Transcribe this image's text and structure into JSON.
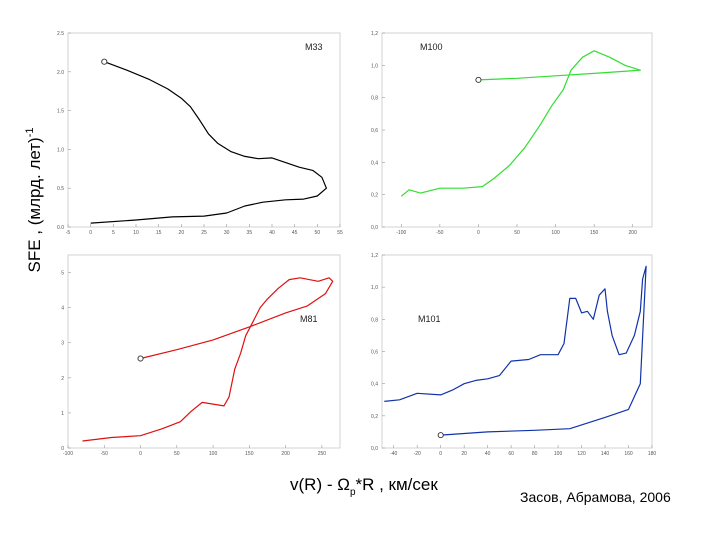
{
  "figure": {
    "ylabel": "SFE , (млрд. лет)",
    "ylabel_sup": "-1",
    "xlabel_prefix": "v(R) - ",
    "xlabel_omega": "Ω",
    "xlabel_sub": "p",
    "xlabel_suffix": "*R , км/сек",
    "citation": "Засов, Абрамова, 2006"
  },
  "chart_data": [
    {
      "type": "line",
      "name": "M33",
      "color": "#000000",
      "xlim": [
        -5,
        55
      ],
      "ylim": [
        0,
        2.5
      ],
      "xticks": [
        -5,
        0,
        5,
        10,
        15,
        20,
        25,
        30,
        35,
        40,
        45,
        50,
        55
      ],
      "yticks": [
        0,
        0.5,
        1.0,
        1.5,
        2.0,
        2.5
      ],
      "ytick_labels": [
        "0.0",
        "0.5",
        "1.0",
        "1.5",
        "2.0",
        "2.5"
      ],
      "start_marker": [
        3,
        2.13
      ],
      "points": [
        [
          3,
          2.13
        ],
        [
          8,
          2.02
        ],
        [
          13,
          1.9
        ],
        [
          17,
          1.78
        ],
        [
          20,
          1.66
        ],
        [
          22,
          1.55
        ],
        [
          24,
          1.38
        ],
        [
          26,
          1.2
        ],
        [
          28,
          1.08
        ],
        [
          31,
          0.97
        ],
        [
          34,
          0.91
        ],
        [
          37,
          0.88
        ],
        [
          40,
          0.89
        ],
        [
          43,
          0.83
        ],
        [
          46,
          0.77
        ],
        [
          49,
          0.73
        ],
        [
          51,
          0.64
        ],
        [
          52,
          0.5
        ],
        [
          50,
          0.4
        ],
        [
          47,
          0.36
        ],
        [
          43,
          0.35
        ],
        [
          38,
          0.32
        ],
        [
          34,
          0.27
        ],
        [
          30,
          0.18
        ],
        [
          25,
          0.14
        ],
        [
          18,
          0.13
        ],
        [
          10,
          0.09
        ],
        [
          0,
          0.05
        ]
      ]
    },
    {
      "type": "line",
      "name": "M100",
      "color": "#33dd33",
      "xlim": [
        -125,
        225
      ],
      "ylim": [
        0,
        1.2
      ],
      "xticks": [
        -100,
        -50,
        0,
        50,
        100,
        150,
        200
      ],
      "yticks": [
        0,
        0.2,
        0.4,
        0.6,
        0.8,
        1.0,
        1.2
      ],
      "ytick_labels": [
        "0,0",
        "0,2",
        "0,4",
        "0,6",
        "0,8",
        "1,0",
        "1,2"
      ],
      "start_marker": [
        0,
        0.91
      ],
      "points": [
        [
          0,
          0.91
        ],
        [
          50,
          0.92
        ],
        [
          100,
          0.935
        ],
        [
          150,
          0.95
        ],
        [
          210,
          0.97
        ],
        [
          190,
          1.0
        ],
        [
          170,
          1.05
        ],
        [
          150,
          1.09
        ],
        [
          135,
          1.05
        ],
        [
          120,
          0.97
        ],
        [
          110,
          0.85
        ],
        [
          95,
          0.75
        ],
        [
          80,
          0.63
        ],
        [
          60,
          0.49
        ],
        [
          40,
          0.38
        ],
        [
          20,
          0.3
        ],
        [
          5,
          0.25
        ],
        [
          -20,
          0.24
        ],
        [
          -50,
          0.24
        ],
        [
          -75,
          0.21
        ],
        [
          -90,
          0.23
        ],
        [
          -100,
          0.19
        ]
      ]
    },
    {
      "type": "line",
      "name": "M81",
      "color": "#dd1111",
      "xlim": [
        -100,
        275
      ],
      "ylim": [
        0,
        5.5
      ],
      "xticks": [
        -100,
        -50,
        0,
        50,
        100,
        150,
        200,
        250
      ],
      "yticks": [
        0,
        1,
        2,
        3,
        4,
        5
      ],
      "ytick_labels": [
        "0",
        "1",
        "2",
        "3",
        "4",
        "5"
      ],
      "start_marker": [
        0,
        2.55
      ],
      "points": [
        [
          0,
          2.55
        ],
        [
          50,
          2.8
        ],
        [
          100,
          3.08
        ],
        [
          150,
          3.45
        ],
        [
          200,
          3.85
        ],
        [
          230,
          4.05
        ],
        [
          255,
          4.4
        ],
        [
          265,
          4.75
        ],
        [
          260,
          4.85
        ],
        [
          245,
          4.75
        ],
        [
          220,
          4.85
        ],
        [
          205,
          4.8
        ],
        [
          190,
          4.55
        ],
        [
          175,
          4.25
        ],
        [
          165,
          4.0
        ],
        [
          155,
          3.6
        ],
        [
          145,
          3.2
        ],
        [
          138,
          2.7
        ],
        [
          130,
          2.25
        ],
        [
          122,
          1.45
        ],
        [
          115,
          1.2
        ],
        [
          100,
          1.25
        ],
        [
          85,
          1.3
        ],
        [
          70,
          1.05
        ],
        [
          55,
          0.75
        ],
        [
          30,
          0.55
        ],
        [
          0,
          0.35
        ],
        [
          -40,
          0.3
        ],
        [
          -80,
          0.2
        ]
      ]
    },
    {
      "type": "line",
      "name": "M101",
      "color": "#1133aa",
      "xlim": [
        -50,
        180
      ],
      "ylim": [
        0,
        1.2
      ],
      "xticks": [
        -40,
        -20,
        0,
        20,
        40,
        60,
        80,
        100,
        120,
        140,
        160,
        180
      ],
      "yticks": [
        0,
        0.2,
        0.4,
        0.6,
        0.8,
        1.0,
        1.2
      ],
      "ytick_labels": [
        "0,0",
        "0,2",
        "0,4",
        "0,6",
        "0,8",
        "1,0",
        "1,2"
      ],
      "start_marker": [
        0,
        0.08
      ],
      "points": [
        [
          0,
          0.08
        ],
        [
          40,
          0.1
        ],
        [
          80,
          0.11
        ],
        [
          110,
          0.12
        ],
        [
          140,
          0.19
        ],
        [
          160,
          0.24
        ],
        [
          170,
          0.4
        ],
        [
          175,
          1.13
        ],
        [
          172,
          1.05
        ],
        [
          170,
          0.85
        ],
        [
          165,
          0.7
        ],
        [
          158,
          0.59
        ],
        [
          152,
          0.58
        ],
        [
          146,
          0.7
        ],
        [
          142,
          0.85
        ],
        [
          140,
          0.99
        ],
        [
          135,
          0.95
        ],
        [
          130,
          0.8
        ],
        [
          125,
          0.85
        ],
        [
          120,
          0.84
        ],
        [
          115,
          0.93
        ],
        [
          110,
          0.93
        ],
        [
          105,
          0.65
        ],
        [
          100,
          0.58
        ],
        [
          85,
          0.58
        ],
        [
          75,
          0.55
        ],
        [
          60,
          0.54
        ],
        [
          50,
          0.45
        ],
        [
          40,
          0.43
        ],
        [
          30,
          0.42
        ],
        [
          20,
          0.4
        ],
        [
          10,
          0.36
        ],
        [
          0,
          0.33
        ],
        [
          -20,
          0.34
        ],
        [
          -35,
          0.3
        ],
        [
          -48,
          0.29
        ]
      ]
    }
  ]
}
